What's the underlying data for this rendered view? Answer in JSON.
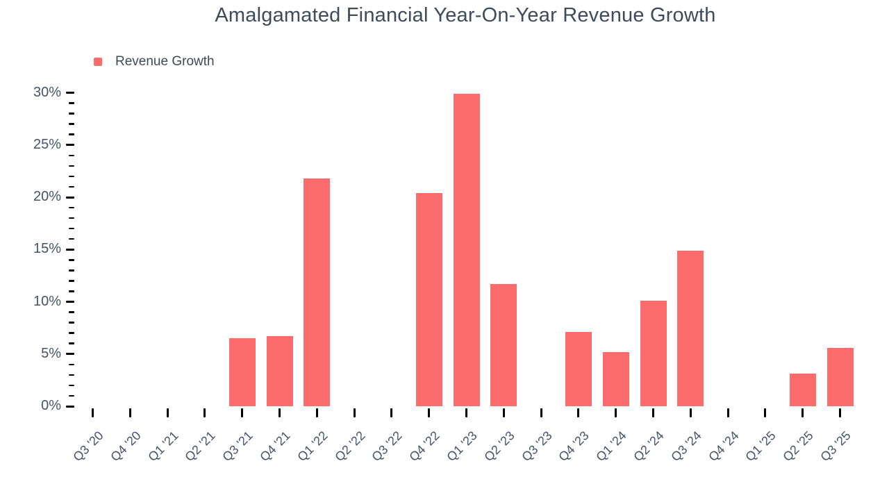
{
  "title": "Amalgamated Financial Year-On-Year Revenue Growth",
  "legend": {
    "label": "Revenue Growth"
  },
  "colors": {
    "bar": "#fc6c6c",
    "title_text": "#3f4a5a",
    "axis_text": "#47536a",
    "tick": "#000000",
    "background": "#ffffff"
  },
  "chart_data": {
    "type": "bar",
    "title": "Amalgamated Financial Year-On-Year Revenue Growth",
    "categories": [
      "Q3 '20",
      "Q4 '20",
      "Q1 '21",
      "Q2 '21",
      "Q3 '21",
      "Q4 '21",
      "Q1 '22",
      "Q2 '22",
      "Q3 '22",
      "Q4 '22",
      "Q1 '23",
      "Q2 '23",
      "Q3 '23",
      "Q4 '23",
      "Q1 '24",
      "Q2 '24",
      "Q3 '24",
      "Q4 '24",
      "Q1 '25",
      "Q2 '25",
      "Q3 '25"
    ],
    "series": [
      {
        "name": "Revenue Growth",
        "values": [
          0,
          0,
          0,
          0,
          6.5,
          6.7,
          21.8,
          0,
          0,
          20.4,
          29.9,
          11.7,
          0,
          7.1,
          5.2,
          10.1,
          14.9,
          0,
          0,
          3.1,
          5.6
        ]
      }
    ],
    "value_unit": "%",
    "xlabel": "",
    "ylabel": "",
    "ylim": [
      0,
      30
    ],
    "y_tick_step": 5,
    "y_minor_tick_step": 1,
    "y_tick_labels": [
      "0%",
      "5%",
      "10%",
      "15%",
      "20%",
      "25%",
      "30%"
    ],
    "grid": false,
    "legend_position": "top-left",
    "bar_color": "#fc6c6c"
  }
}
